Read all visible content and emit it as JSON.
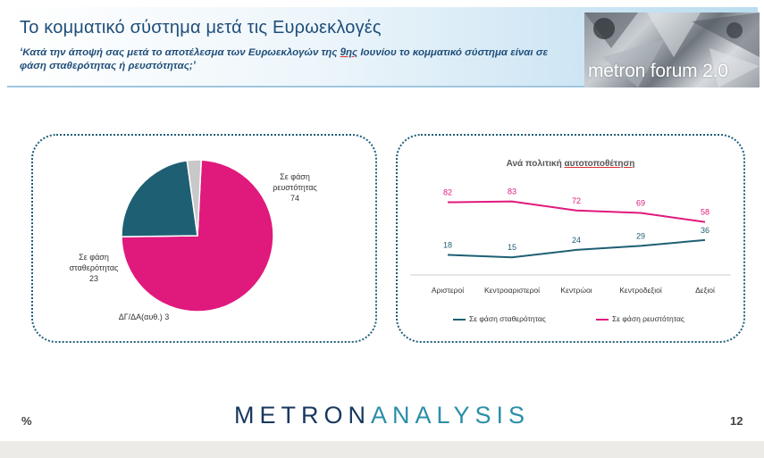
{
  "header": {
    "title": "Το κομματικό σύστημα μετά τις Ευρωεκλογές",
    "question_part1": "‘Κατά την άποψή σας μετά το αποτέλεσμα των Ευρωεκλογών της ",
    "question_underlined": "9ης",
    "question_part2": " Ιουνίου το κομματικό σύστημα είναι σε φάση σταθερότητας ή ρευστότητας;’",
    "brand": "metron forum 2.0"
  },
  "colors": {
    "stability": "#1f5f73",
    "fluidity": "#e0197d",
    "dk": "#c8c8c8",
    "navy": "#17375e",
    "teal": "#2a8fa8"
  },
  "chart_data": [
    {
      "type": "pie",
      "slices": [
        {
          "label": "Σε φάση ρευστότητας",
          "value": 74,
          "color": "#e0197d"
        },
        {
          "label": "Σε φάση σταθερότητας",
          "value": 23,
          "color": "#1f5f73"
        },
        {
          "label": "ΔΓ/ΔΑ(αυθ.)",
          "value": 3,
          "color": "#c8c8c8"
        }
      ],
      "labels": {
        "fluid_line1": "Σε φάση",
        "fluid_line2": "ρευστότητας",
        "fluid_value": "74",
        "stab_line1": "Σε φάση",
        "stab_line2": "σταθερότητας",
        "stab_value": "23",
        "dk_text": "ΔΓ/ΔΑ(αυθ.) 3"
      }
    },
    {
      "type": "line",
      "title_prefix": "Ανά πολιτική ",
      "title_underlined": "αυτοτοποθέτηση",
      "categories": [
        "Αριστεροί",
        "Κεντροαριστεροί",
        "Κεντρώοι",
        "Κεντροδεξιοί",
        "Δεξιοί"
      ],
      "series": [
        {
          "name": "Σε φάση σταθερότητας",
          "values": [
            18,
            15,
            24,
            29,
            36
          ],
          "color": "#1f5f73"
        },
        {
          "name": "Σε φάση ρευστότητας",
          "values": [
            82,
            83,
            72,
            69,
            58
          ],
          "color": "#e0197d"
        }
      ],
      "ylim": [
        0,
        100
      ],
      "legend": "bottom"
    }
  ],
  "footer": {
    "logo_part1": "METRON",
    "logo_part2": "ANALYSIS",
    "percent_sign": "%",
    "page_number": "12"
  }
}
